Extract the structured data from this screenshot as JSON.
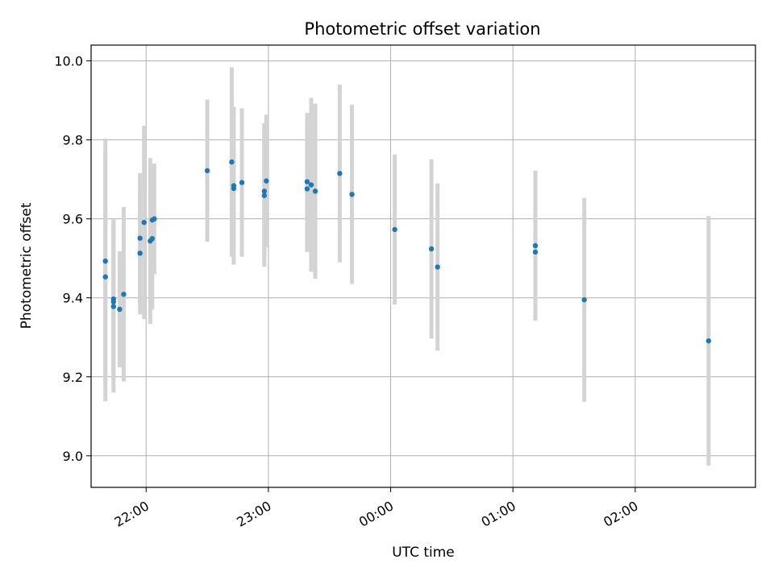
{
  "chart_data": {
    "type": "scatter",
    "title": "Photometric offset variation",
    "xlabel": "UTC time",
    "ylabel": "Photometric offset",
    "grid": true,
    "xlim": [
      "21:33",
      "02:59"
    ],
    "ylim": [
      8.92,
      10.04
    ],
    "x_ticks": [
      "22:00",
      "23:00",
      "00:00",
      "01:00",
      "02:00"
    ],
    "y_ticks": [
      9.0,
      9.2,
      9.4,
      9.6,
      9.8,
      10.0
    ],
    "point_color": "#1f77b4",
    "errorbar_color": "#d3d3d3",
    "points": [
      {
        "x": "21:40",
        "y": 9.493,
        "err": 0.31
      },
      {
        "x": "21:40",
        "y": 9.453,
        "err": 0.315
      },
      {
        "x": "21:44",
        "y": 9.397,
        "err": 0.203
      },
      {
        "x": "21:44",
        "y": 9.39,
        "err": 0.196
      },
      {
        "x": "21:44",
        "y": 9.378,
        "err": 0.218
      },
      {
        "x": "21:47",
        "y": 9.371,
        "err": 0.147
      },
      {
        "x": "21:49",
        "y": 9.409,
        "err": 0.221
      },
      {
        "x": "21:57",
        "y": 9.551,
        "err": 0.165
      },
      {
        "x": "21:57",
        "y": 9.513,
        "err": 0.155
      },
      {
        "x": "21:59",
        "y": 9.591,
        "err": 0.245
      },
      {
        "x": "22:02",
        "y": 9.544,
        "err": 0.21
      },
      {
        "x": "22:03",
        "y": 9.55,
        "err": 0.18
      },
      {
        "x": "22:03",
        "y": 9.597,
        "err": 0.143
      },
      {
        "x": "22:04",
        "y": 9.6,
        "err": 0.14
      },
      {
        "x": "22:30",
        "y": 9.722,
        "err": 0.18
      },
      {
        "x": "22:42",
        "y": 9.744,
        "err": 0.24
      },
      {
        "x": "22:43",
        "y": 9.684,
        "err": 0.2
      },
      {
        "x": "22:43",
        "y": 9.677,
        "err": 0.18
      },
      {
        "x": "22:47",
        "y": 9.692,
        "err": 0.188
      },
      {
        "x": "22:58",
        "y": 9.67,
        "err": 0.172
      },
      {
        "x": "22:58",
        "y": 9.659,
        "err": 0.18
      },
      {
        "x": "22:59",
        "y": 9.696,
        "err": 0.168
      },
      {
        "x": "23:19",
        "y": 9.694,
        "err": 0.174
      },
      {
        "x": "23:19",
        "y": 9.676,
        "err": 0.16
      },
      {
        "x": "23:21",
        "y": 9.686,
        "err": 0.22
      },
      {
        "x": "23:23",
        "y": 9.67,
        "err": 0.222
      },
      {
        "x": "23:35",
        "y": 9.715,
        "err": 0.225
      },
      {
        "x": "23:41",
        "y": 9.662,
        "err": 0.227
      },
      {
        "x": "00:02",
        "y": 9.573,
        "err": 0.19
      },
      {
        "x": "00:20",
        "y": 9.524,
        "err": 0.227
      },
      {
        "x": "00:23",
        "y": 9.478,
        "err": 0.212
      },
      {
        "x": "01:11",
        "y": 9.532,
        "err": 0.19
      },
      {
        "x": "01:11",
        "y": 9.516,
        "err": 0.172
      },
      {
        "x": "01:35",
        "y": 9.395,
        "err": 0.258
      },
      {
        "x": "02:36",
        "y": 9.291,
        "err": 0.316
      }
    ]
  }
}
